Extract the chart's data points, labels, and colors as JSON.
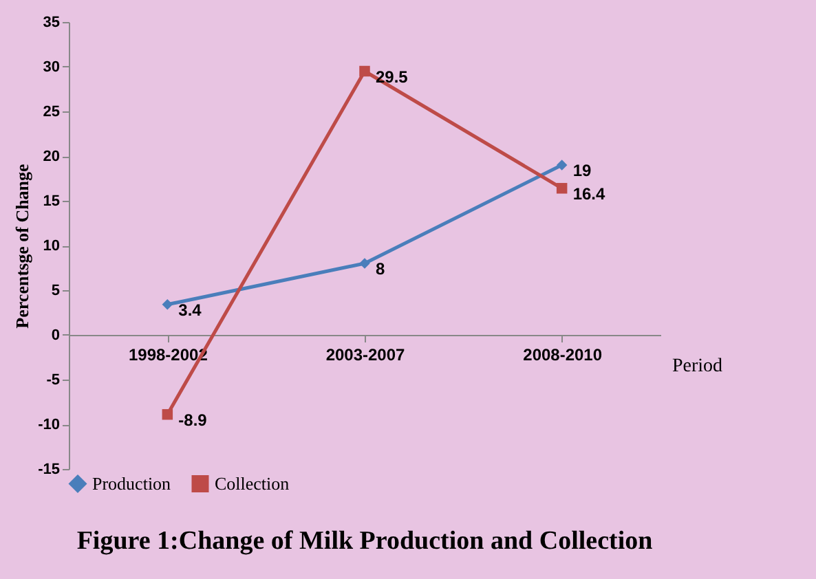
{
  "chart_data": {
    "type": "line",
    "title": "Figure 1:Change of Milk Production and Collection",
    "xlabel": "Period",
    "ylabel": "Percentsge of Change",
    "categories": [
      "1998-2002",
      "2003-2007",
      "2008-2010"
    ],
    "series": [
      {
        "name": "Production",
        "color": "#4a7ebb",
        "marker": "diamond",
        "values": [
          3.4,
          8,
          19
        ]
      },
      {
        "name": "Collection",
        "color": "#be4b48",
        "marker": "square",
        "values": [
          -8.9,
          29.5,
          16.4
        ]
      }
    ],
    "ylim": [
      -15,
      35
    ],
    "yticks": [
      -15,
      -10,
      -5,
      0,
      5,
      10,
      15,
      20,
      25,
      30,
      35
    ],
    "grid": false,
    "legend": "bottom",
    "data_labels": true,
    "line_style": "solid"
  }
}
